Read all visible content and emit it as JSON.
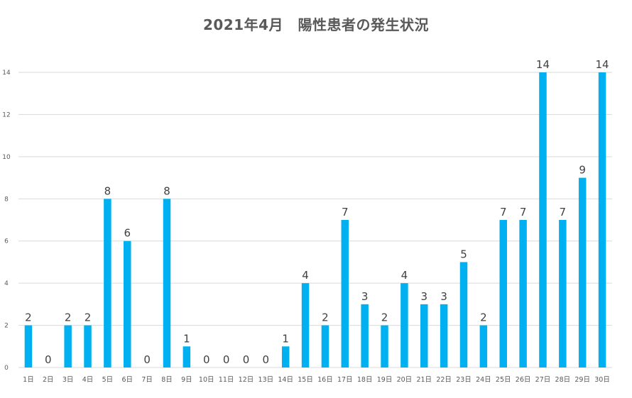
{
  "chart_data": {
    "type": "bar",
    "title": "2021年4月　陽性患者の発生状況",
    "xlabel": "",
    "ylabel": "",
    "categories": [
      "1日",
      "2日",
      "3日",
      "4日",
      "5日",
      "6日",
      "7日",
      "8日",
      "9日",
      "10日",
      "11日",
      "12日",
      "13日",
      "14日",
      "15日",
      "16日",
      "17日",
      "18日",
      "19日",
      "20日",
      "21日",
      "22日",
      "23日",
      "24日",
      "25日",
      "26日",
      "27日",
      "28日",
      "29日",
      "30日"
    ],
    "values": [
      2,
      0,
      2,
      2,
      8,
      6,
      0,
      8,
      1,
      0,
      0,
      0,
      0,
      1,
      4,
      2,
      7,
      3,
      2,
      4,
      3,
      3,
      5,
      2,
      7,
      7,
      14,
      7,
      9,
      14
    ],
    "ylim": [
      0,
      14
    ],
    "yticks": [
      0,
      2,
      4,
      6,
      8,
      10,
      12,
      14
    ],
    "grid": true,
    "legend": "none",
    "bar_color": "#00b0f0",
    "data_labels": true
  }
}
